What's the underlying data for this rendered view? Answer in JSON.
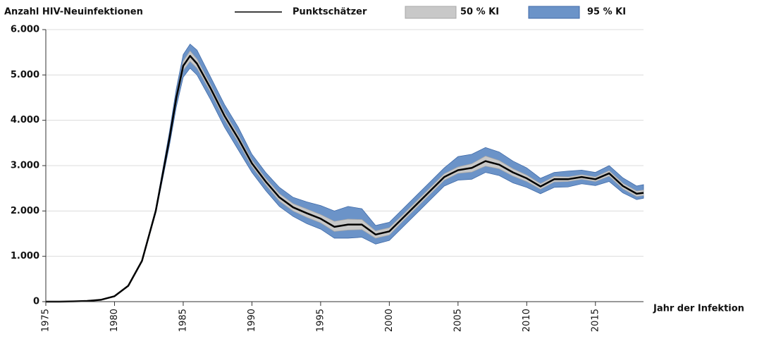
{
  "chart_data": {
    "type": "line",
    "title": "Anzahl HIV-Neuinfektionen",
    "x_label": "Jahr der Infektion",
    "x": [
      1975,
      1976,
      1977,
      1978,
      1979,
      1980,
      1981,
      1982,
      1983,
      1984,
      1984.5,
      1985,
      1985.5,
      1986,
      1987,
      1988,
      1989,
      1990,
      1991,
      1992,
      1993,
      1994,
      1995,
      1996,
      1997,
      1998,
      1999,
      2000,
      2001,
      2002,
      2003,
      2004,
      2005,
      2006,
      2007,
      2008,
      2009,
      2010,
      2011,
      2012,
      2013,
      2014,
      2015,
      2016,
      2017,
      2018,
      2018.5
    ],
    "series": [
      {
        "name": "Punktschätzer",
        "color": "#000000",
        "values": [
          0,
          0,
          5,
          15,
          40,
          120,
          350,
          900,
          2000,
          3600,
          4500,
          5200,
          5420,
          5250,
          4700,
          4100,
          3600,
          3050,
          2650,
          2300,
          2080,
          1950,
          1830,
          1650,
          1700,
          1700,
          1480,
          1550,
          1850,
          2150,
          2450,
          2750,
          2900,
          2950,
          3100,
          3020,
          2850,
          2720,
          2540,
          2700,
          2700,
          2750,
          2700,
          2830,
          2550,
          2380,
          2400
        ]
      }
    ],
    "bands": [
      {
        "name": "95 % KI",
        "color": "#6b93c8",
        "edge": "#3f6aa8",
        "lower": [
          0,
          0,
          5,
          15,
          40,
          120,
          340,
          880,
          1950,
          3450,
          4300,
          4950,
          5150,
          5000,
          4450,
          3850,
          3350,
          2850,
          2450,
          2100,
          1880,
          1720,
          1600,
          1400,
          1400,
          1420,
          1270,
          1350,
          1650,
          1950,
          2250,
          2550,
          2680,
          2700,
          2850,
          2780,
          2620,
          2520,
          2380,
          2520,
          2530,
          2600,
          2560,
          2650,
          2400,
          2250,
          2280
        ],
        "upper": [
          0,
          0,
          5,
          15,
          40,
          125,
          360,
          920,
          2050,
          3750,
          4700,
          5450,
          5680,
          5550,
          4950,
          4350,
          3850,
          3250,
          2850,
          2520,
          2300,
          2200,
          2120,
          2000,
          2100,
          2050,
          1680,
          1750,
          2050,
          2350,
          2650,
          2950,
          3200,
          3250,
          3400,
          3300,
          3100,
          2950,
          2720,
          2850,
          2880,
          2900,
          2850,
          3000,
          2730,
          2550,
          2580
        ]
      },
      {
        "name": "50 % KI",
        "color": "#c8c8c8",
        "edge": "#a8a8a8",
        "lower": [
          0,
          0,
          5,
          15,
          40,
          120,
          345,
          890,
          1980,
          3550,
          4430,
          5100,
          5300,
          5150,
          4620,
          4020,
          3520,
          2980,
          2580,
          2220,
          2000,
          1860,
          1740,
          1550,
          1580,
          1590,
          1400,
          1470,
          1780,
          2080,
          2380,
          2680,
          2830,
          2860,
          2990,
          2930,
          2770,
          2650,
          2480,
          2640,
          2650,
          2700,
          2650,
          2770,
          2490,
          2320,
          2340
        ],
        "upper": [
          0,
          0,
          5,
          15,
          40,
          122,
          355,
          910,
          2020,
          3650,
          4570,
          5300,
          5530,
          5350,
          4780,
          4180,
          3680,
          3120,
          2720,
          2380,
          2160,
          2040,
          1920,
          1770,
          1820,
          1810,
          1560,
          1630,
          1920,
          2220,
          2520,
          2820,
          2970,
          3040,
          3210,
          3110,
          2930,
          2790,
          2600,
          2760,
          2750,
          2800,
          2750,
          2890,
          2610,
          2440,
          2460
        ]
      }
    ],
    "xlim": [
      1975,
      2018.5
    ],
    "xticks": [
      1975,
      1980,
      1985,
      1990,
      1995,
      2000,
      2005,
      2010,
      2015
    ],
    "ylim": [
      0,
      6000
    ],
    "yticks": [
      0,
      {
        "value": 1000,
        "label": "1.000"
      },
      {
        "value": 2000,
        "label": "2.000"
      },
      {
        "value": 3000,
        "label": "3.000"
      },
      {
        "value": 4000,
        "label": "4.000"
      },
      {
        "value": 5000,
        "label": "5.000"
      },
      {
        "value": 6000,
        "label": "6.000"
      }
    ],
    "grid": true
  }
}
